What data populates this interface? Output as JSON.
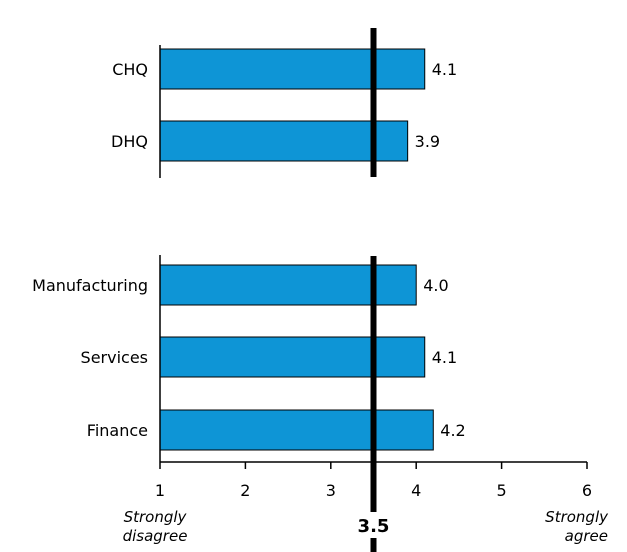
{
  "chart_data": {
    "type": "bar",
    "orientation": "horizontal",
    "title": "",
    "xlabel": "",
    "ylabel": "",
    "xlim": [
      1,
      6
    ],
    "x_ticks": [
      "1",
      "2",
      "3",
      "4",
      "5",
      "6"
    ],
    "grid": false,
    "legend": "none",
    "bar_color": "#0e95d6",
    "reference_line": {
      "value": 3.5,
      "label": "3.5"
    },
    "scale_labels": {
      "min": [
        "Strongly",
        "disagree"
      ],
      "max": [
        "Strongly",
        "agree"
      ]
    },
    "groups": [
      {
        "categories": [
          "CHQ",
          "DHQ"
        ],
        "values": [
          4.1,
          3.9
        ],
        "value_labels": [
          "4.1",
          "3.9"
        ]
      },
      {
        "categories": [
          "Manufacturing",
          "Services",
          "Finance"
        ],
        "values": [
          4.0,
          4.1,
          4.2
        ],
        "value_labels": [
          "4.0",
          "4.1",
          "4.2"
        ]
      }
    ]
  }
}
